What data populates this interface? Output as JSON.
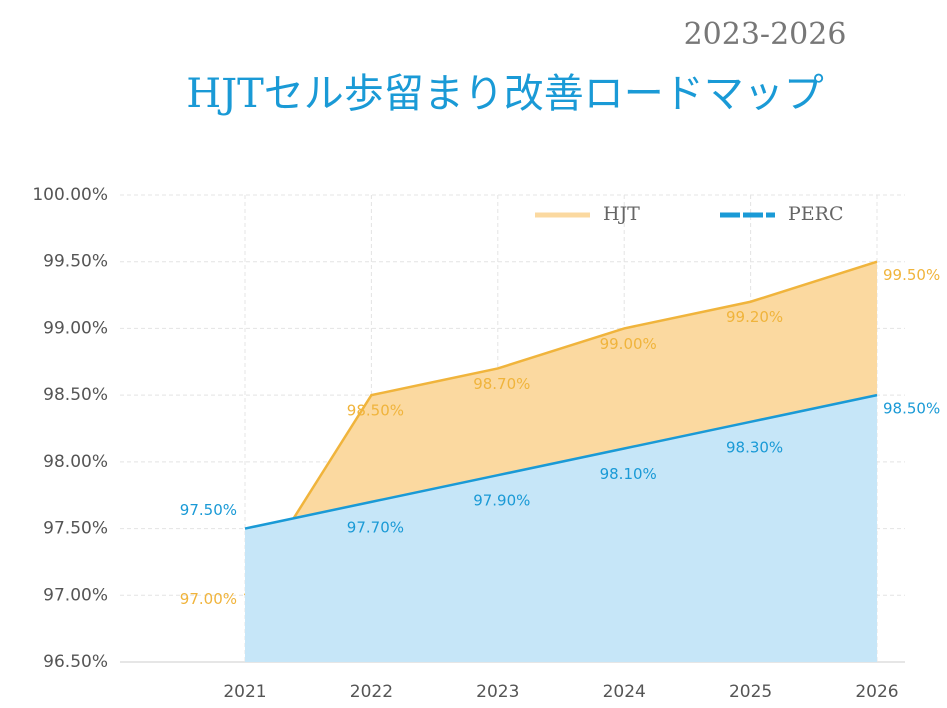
{
  "chart_data": {
    "type": "area",
    "title": "HJTセル歩留まり改善ロードマップ",
    "subtitle": "2023-2026",
    "categories": [
      "2021",
      "2022",
      "2023",
      "2024",
      "2025",
      "2026"
    ],
    "series": [
      {
        "name": "HJT",
        "color": "#f0b43c",
        "fill": "#fbd9a0",
        "values": [
          97.0,
          98.5,
          98.7,
          99.0,
          99.2,
          99.5
        ],
        "value_labels": [
          "97.00%",
          "98.50%",
          "98.70%",
          "99.00%",
          "99.20%",
          "99.50%"
        ]
      },
      {
        "name": "PERC",
        "color": "#1a9ad6",
        "fill": "#c6e6f8",
        "values": [
          97.5,
          97.7,
          97.9,
          98.1,
          98.3,
          98.5
        ],
        "value_labels": [
          "97.50%",
          "97.70%",
          "97.90%",
          "98.10%",
          "98.30%",
          "98.50%"
        ]
      }
    ],
    "ylim": [
      96.5,
      100.0
    ],
    "yticks": [
      {
        "value": 96.5,
        "label": "96.50%"
      },
      {
        "value": 97.0,
        "label": "97.00%"
      },
      {
        "value": 97.5,
        "label": "97.50%"
      },
      {
        "value": 98.0,
        "label": "98.00%"
      },
      {
        "value": 98.5,
        "label": "98.50%"
      },
      {
        "value": 99.0,
        "label": "99.00%"
      },
      {
        "value": 99.5,
        "label": "99.50%"
      },
      {
        "value": 100.0,
        "label": "100.00%"
      }
    ],
    "grid": true,
    "legend": "top-right"
  }
}
